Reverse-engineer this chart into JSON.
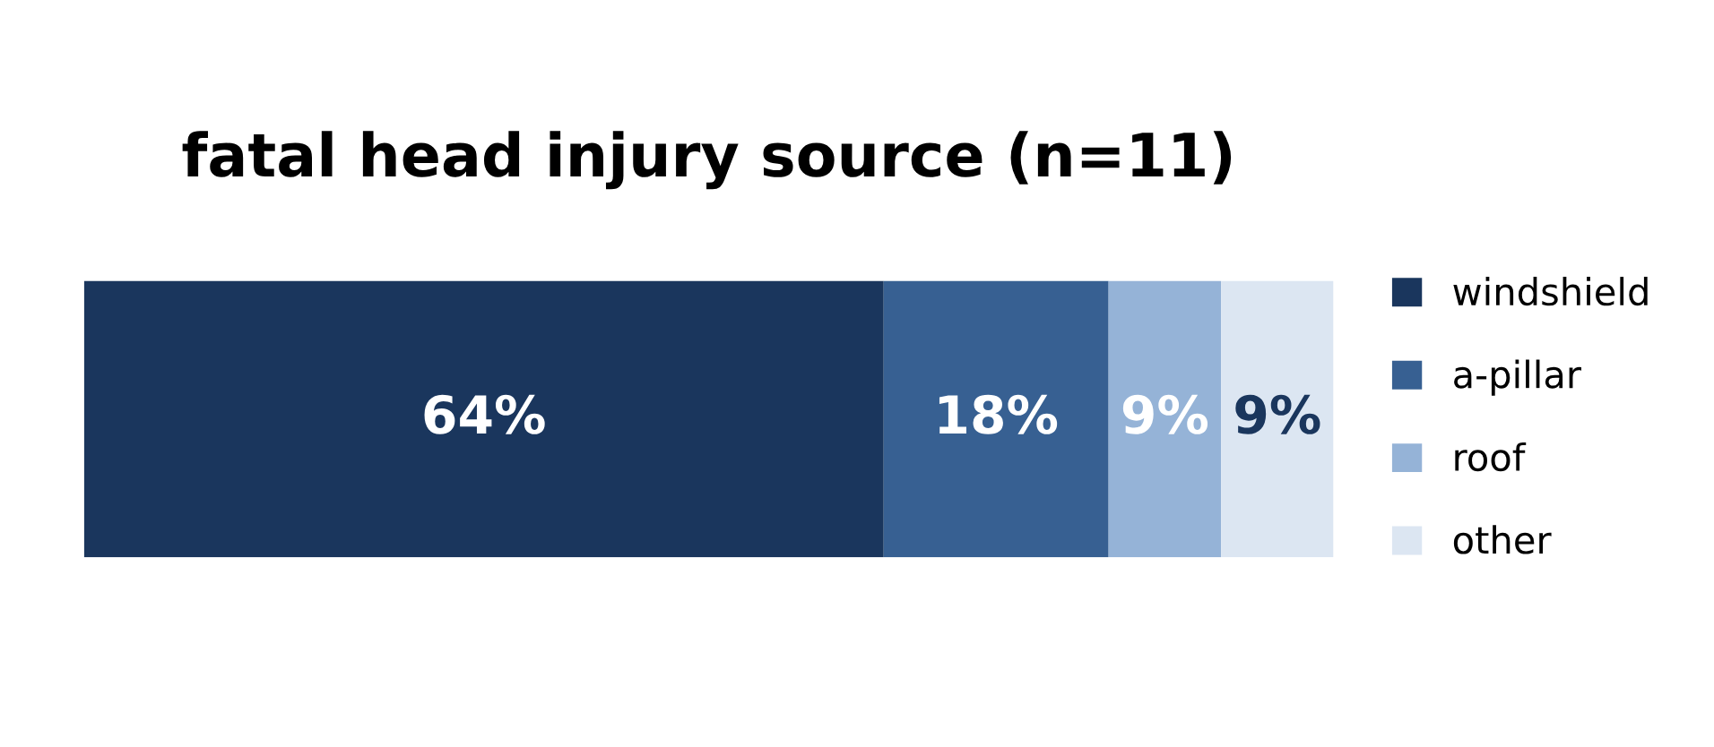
{
  "chart_data": {
    "type": "bar",
    "title": "fatal head injury source (n=11)",
    "orientation": "horizontal",
    "stacked": true,
    "categories": [
      null
    ],
    "legend": "right",
    "tick_labels": false,
    "series": [
      {
        "name": "windshield",
        "color": "#1a365d",
        "values": [
          64
        ],
        "value_labels": [
          "64%"
        ]
      },
      {
        "name": "a-pillar",
        "color": "#376092",
        "values": [
          18
        ],
        "value_labels": [
          "18%"
        ]
      },
      {
        "name": "roof",
        "color": "#95b3d7",
        "values": [
          9
        ],
        "value_labels": [
          "9%"
        ]
      },
      {
        "name": "other",
        "color": "#dce6f2",
        "values": [
          9
        ],
        "value_labels": [
          "9%"
        ]
      }
    ]
  }
}
